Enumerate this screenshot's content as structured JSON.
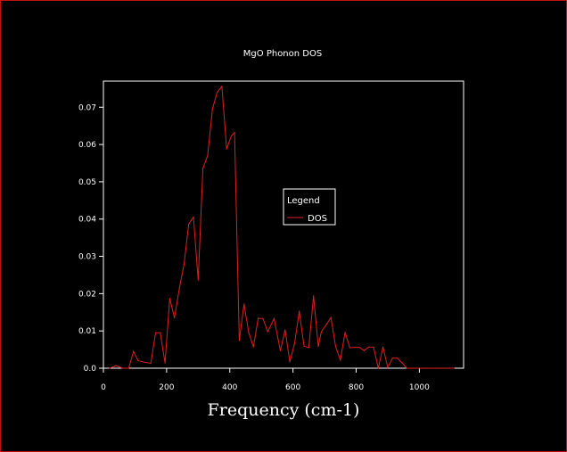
{
  "chart_data": {
    "type": "line",
    "title": "MgO Phonon DOS",
    "xlabel": "Frequency (cm-1)",
    "ylabel": "",
    "xlim": [
      0,
      1140
    ],
    "ylim": [
      0,
      0.077
    ],
    "xticks": [
      0,
      200,
      400,
      600,
      800,
      1000
    ],
    "xtick_labels": [
      "0",
      "200",
      "400",
      "600",
      "800",
      "1000"
    ],
    "yticks": [
      0.0,
      0.01,
      0.02,
      0.03,
      0.04,
      0.05,
      0.06,
      0.07
    ],
    "ytick_labels": [
      "0.0",
      "0.01",
      "0.02",
      "0.03",
      "0.04",
      "0.05",
      "0.06",
      "0.07"
    ],
    "grid": false,
    "legend": {
      "title": "Legend",
      "position": "center-right"
    },
    "colors": {
      "background": "#000000",
      "frame": "#c01010",
      "axes": "#ffffff",
      "text": "#ffffff"
    },
    "series": [
      {
        "name": "DOS",
        "color": "#e02020",
        "x": [
          20,
          40,
          60,
          80,
          95,
          110,
          130,
          150,
          165,
          180,
          195,
          210,
          225,
          240,
          255,
          270,
          285,
          300,
          315,
          330,
          345,
          360,
          375,
          390,
          405,
          415,
          430,
          445,
          460,
          475,
          490,
          505,
          520,
          540,
          560,
          575,
          590,
          605,
          620,
          635,
          650,
          665,
          680,
          690,
          705,
          720,
          735,
          750,
          765,
          780,
          795,
          810,
          825,
          840,
          855,
          870,
          885,
          900,
          915,
          930,
          945,
          960,
          975,
          990,
          1005,
          1020,
          1035,
          1050,
          1065,
          1080,
          1095,
          1110
        ],
        "y": [
          0.0,
          0.0007,
          0.0,
          0.0,
          0.0045,
          0.002,
          0.0016,
          0.0013,
          0.0095,
          0.0095,
          0.0014,
          0.0187,
          0.0135,
          0.0213,
          0.0278,
          0.0387,
          0.0405,
          0.0236,
          0.0536,
          0.057,
          0.0695,
          0.074,
          0.0756,
          0.0588,
          0.0623,
          0.0632,
          0.0074,
          0.0172,
          0.0096,
          0.0057,
          0.0134,
          0.0133,
          0.0098,
          0.0133,
          0.0047,
          0.0103,
          0.0017,
          0.0066,
          0.0153,
          0.0059,
          0.0055,
          0.0194,
          0.0058,
          0.0098,
          0.0116,
          0.0136,
          0.0058,
          0.0022,
          0.0096,
          0.0055,
          0.0056,
          0.0056,
          0.0047,
          0.0057,
          0.0057,
          0.0,
          0.0057,
          0.0002,
          0.0027,
          0.0027,
          0.0015,
          0.0,
          0.0,
          0.0,
          0.0,
          0.0,
          0.0,
          0.0,
          0.0,
          0.0,
          0.0,
          0.0
        ]
      }
    ]
  }
}
